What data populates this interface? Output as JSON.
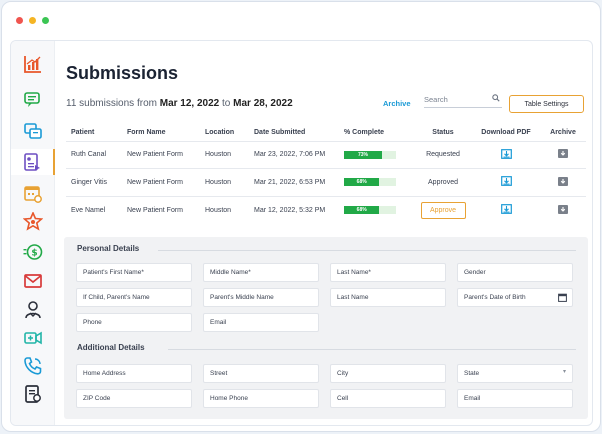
{
  "window": {
    "dot_colors": [
      "#f0554f",
      "#f5b524",
      "#3bc553"
    ]
  },
  "sidebar": {
    "items": [
      {
        "name": "analytics-chart-icon",
        "color": "#e8572b"
      },
      {
        "name": "chat-bubbles-icon",
        "color": "#21a947"
      },
      {
        "name": "messages-icon",
        "color": "#1a9ad6"
      },
      {
        "name": "submissions-form-icon",
        "color": "#6d4fc2",
        "active": true
      },
      {
        "name": "calendar-gear-icon",
        "color": "#e8a234"
      },
      {
        "name": "badge-star-icon",
        "color": "#e8572b"
      },
      {
        "name": "money-icon",
        "color": "#21a947"
      },
      {
        "name": "mail-icon",
        "color": "#d83a3a"
      },
      {
        "name": "stethoscope-icon",
        "color": "#2b2f3a"
      },
      {
        "name": "video-call-icon",
        "color": "#21b5a8"
      },
      {
        "name": "phone-call-icon",
        "color": "#1a9ad6"
      },
      {
        "name": "report-document-icon",
        "color": "#2b2f3a"
      }
    ]
  },
  "header": {
    "title": "Submissions",
    "count_text": "11 submissions from",
    "date_from": "Mar 12, 2022",
    "to_text": "to",
    "date_to": "Mar 28, 2022",
    "archive_link": "Archive",
    "search_placeholder": "Search",
    "table_settings": "Table Settings"
  },
  "table": {
    "columns": [
      "Patient",
      "Form Name",
      "Location",
      "Date Submitted",
      "% Complete",
      "Status",
      "Download PDF",
      "Archive"
    ],
    "rows": [
      {
        "patient": "Ruth Canal",
        "form": "New Patient Form",
        "location": "Houston",
        "date": "Mar 23, 2022, 7:06 PM",
        "complete": 73,
        "complete_label": "73%",
        "status": "Requested",
        "status_type": "text"
      },
      {
        "patient": "Ginger Vitis",
        "form": "New Patient Form",
        "location": "Houston",
        "date": "Mar 21, 2022, 6:53 PM",
        "complete": 68,
        "complete_label": "68%",
        "status": "Approved",
        "status_type": "text"
      },
      {
        "patient": "Eve Namel",
        "form": "New Patient Form",
        "location": "Houston",
        "date": "Mar 12, 2022, 5:32 PM",
        "complete": 68,
        "complete_label": "68%",
        "status": "Approve",
        "status_type": "button"
      }
    ]
  },
  "details": {
    "personal_title": "Personal Details",
    "personal_fields": [
      "Patient's First Name*",
      "Middle Name*",
      "Last Name*",
      "Gender",
      "If Child, Parent's Name",
      "Parent's Middle Name",
      "Last Name",
      "Parent's Date of Birth",
      "Phone",
      "Email"
    ],
    "additional_title": "Additional Details",
    "additional_fields": [
      "Home Address",
      "Street",
      "City",
      "State",
      "ZIP Code",
      "Home Phone",
      "Cell",
      "Email"
    ]
  },
  "colors": {
    "accent": "#e8a234",
    "link": "#1a9ad6",
    "progress": "#21a947"
  }
}
